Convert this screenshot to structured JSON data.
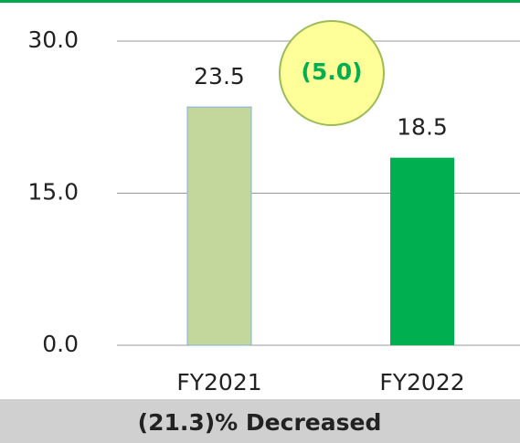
{
  "chart_data": {
    "type": "bar",
    "categories": [
      "FY2021",
      "FY2022"
    ],
    "values": [
      23.5,
      18.5
    ],
    "colors": [
      "#c3d69b",
      "#00b050"
    ],
    "ylim": [
      0,
      30
    ],
    "yticks": [
      {
        "value": 0,
        "label": "0.0"
      },
      {
        "value": 15,
        "label": "15.0"
      },
      {
        "value": 30,
        "label": "30.0"
      }
    ],
    "grid": true,
    "annotation": "(5.0)",
    "footer": "(21.3)% Decreased"
  }
}
